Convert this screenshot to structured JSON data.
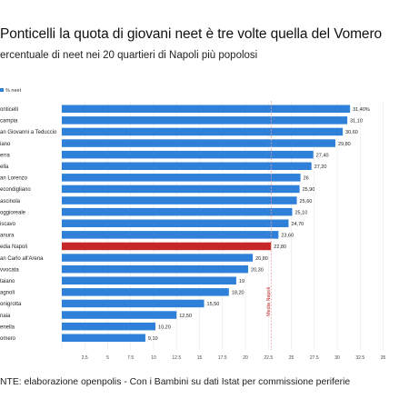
{
  "title": "Ponticelli la quota di giovani neet è tre volte quella del Vomero",
  "subtitle": "ercentuale di neet nei 20 quartieri di Napoli più popolosi",
  "source": "NTE: elaborazione openpolis - Con i Bambini su dati Istat per commissione periferie",
  "colors": {
    "bar": "#2f80d8",
    "highlight": "#c62828",
    "reference": "#e8a0a0",
    "grid": "#e6e6e6"
  },
  "chart_data": {
    "type": "bar",
    "orientation": "horizontal",
    "legend": "% neet",
    "legend_position": "top-left",
    "categories": [
      "onticelli",
      "campia",
      "an Giovanni a Teduccio",
      "iano",
      "erra",
      "ella",
      "an Lorenzo",
      "econdigliano",
      "ascinola",
      "oggioreale",
      "iscavo",
      "anura",
      "edia Napoli",
      "an Carlo all'Arena",
      "vvocata",
      "taiano",
      "agnoli",
      "onigrotta",
      "naia",
      "enella",
      "omero"
    ],
    "values": [
      31.4,
      31.1,
      30.6,
      29.8,
      27.4,
      27.2,
      26,
      25.9,
      25.6,
      25.1,
      24.7,
      23.6,
      22.8,
      20.8,
      20.3,
      19,
      18.2,
      15.5,
      12.5,
      10.2,
      9.1
    ],
    "value_labels": [
      "31,40%",
      "31,10",
      "30,60",
      "29,80",
      "27,40",
      "27,20",
      "26",
      "25,90",
      "25,60",
      "25,10",
      "24,70",
      "23,60",
      "22,80",
      "20,80",
      "20,30",
      "19",
      "18,20",
      "15,50",
      "12,50",
      "10,20",
      "9,10"
    ],
    "highlight_category": "edia Napoli",
    "reference_line": {
      "value": 22.8,
      "label": "Media Napoli"
    },
    "xlim": [
      0,
      36
    ],
    "xticks": [
      0,
      2.5,
      5,
      7.5,
      10,
      12.5,
      15,
      17.5,
      20,
      22.5,
      25,
      27.5,
      30,
      32.5,
      35
    ],
    "xtick_labels": [
      "",
      "2.5",
      "5",
      "7.5",
      "10",
      "12.5",
      "15",
      "17.5",
      "20",
      "22.5",
      "25",
      "27.5",
      "30",
      "32.5",
      "35"
    ],
    "grid": true
  }
}
